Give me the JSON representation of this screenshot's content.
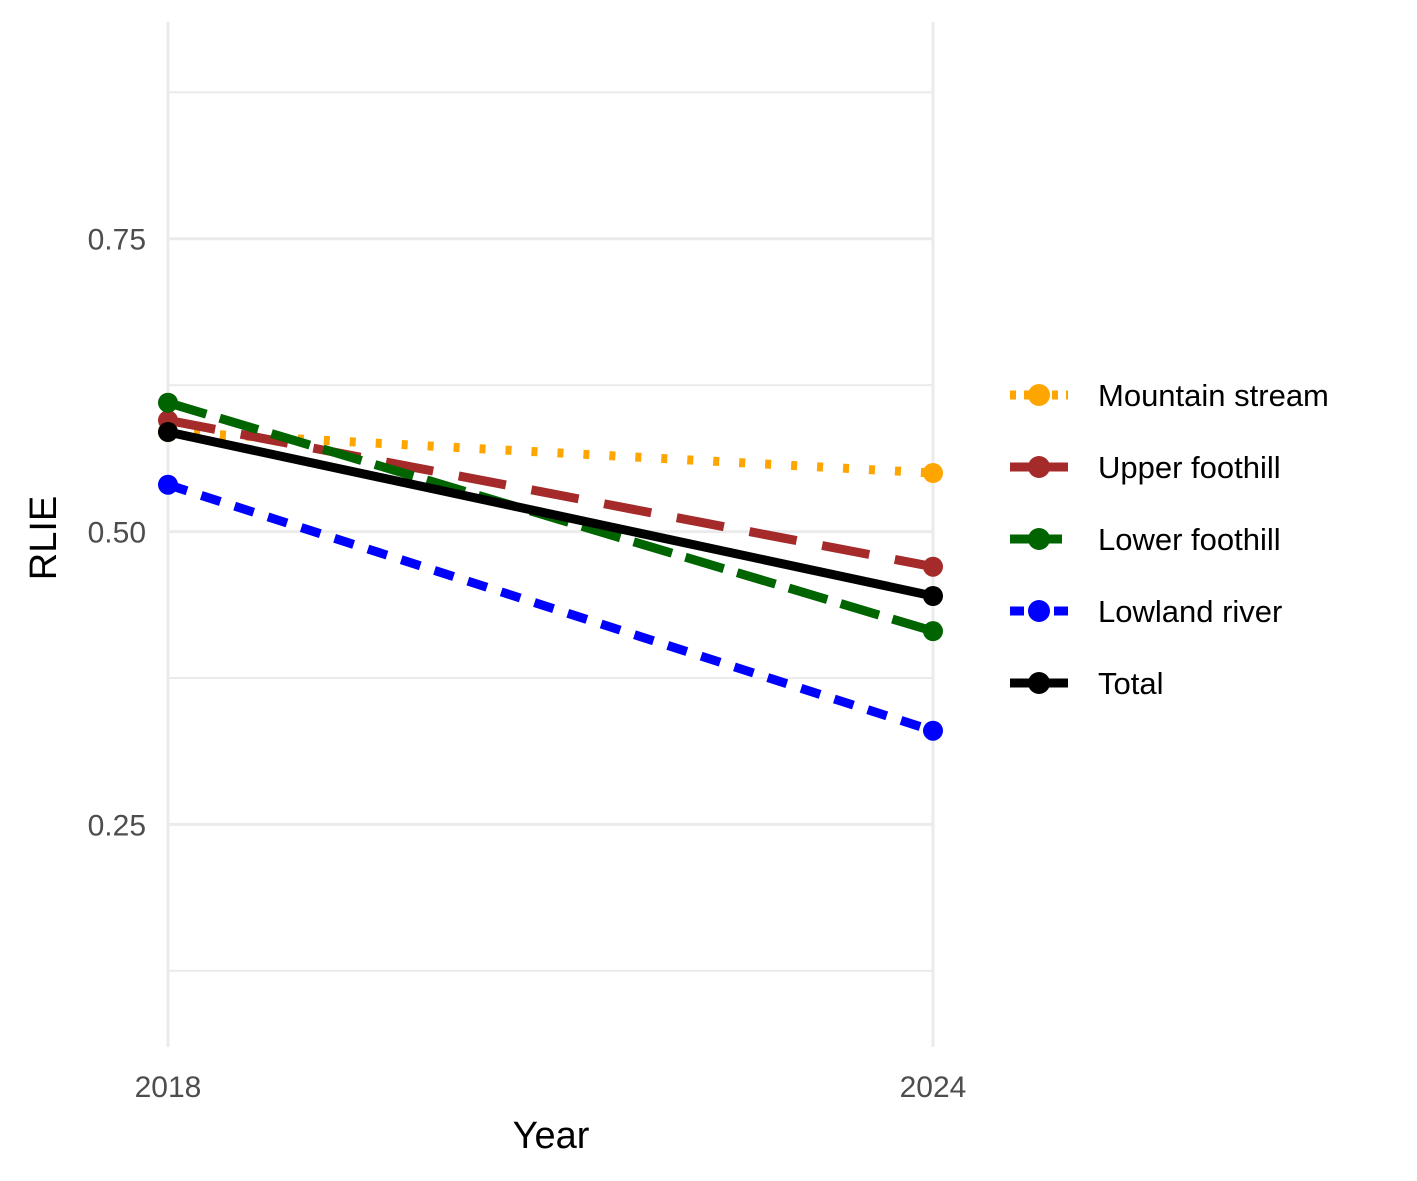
{
  "chart_data": {
    "type": "line",
    "title": "",
    "xlabel": "Year",
    "ylabel": "RLIE",
    "x": [
      2018,
      2024
    ],
    "x_ticks": [
      "2018",
      "2024"
    ],
    "y_ticks": [
      "0.25",
      "0.50",
      "0.75"
    ],
    "y_tick_values": [
      0.25,
      0.5,
      0.75
    ],
    "ylim": [
      0.06,
      0.935
    ],
    "xlim": [
      2018,
      2024
    ],
    "grid": true,
    "legend_position": "right",
    "series": [
      {
        "name": "Mountain stream",
        "values": [
          0.585,
          0.55
        ],
        "color": "#FFA500",
        "line_style": "dotted"
      },
      {
        "name": "Upper foothill",
        "values": [
          0.595,
          0.47
        ],
        "color": "#A52A2A",
        "line_style": "longdash"
      },
      {
        "name": "Lower foothill",
        "values": [
          0.61,
          0.415
        ],
        "color": "#006400",
        "line_style": "dashed"
      },
      {
        "name": "Lowland river",
        "values": [
          0.54,
          0.33
        ],
        "color": "#0000FF",
        "line_style": "dashed-short"
      },
      {
        "name": "Total",
        "values": [
          0.585,
          0.445
        ],
        "color": "#000000",
        "line_style": "solid"
      }
    ]
  }
}
